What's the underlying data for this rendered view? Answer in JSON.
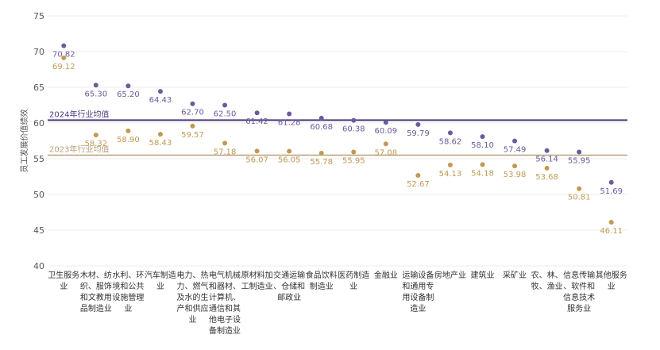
{
  "chart_data": {
    "type": "scatter",
    "title": "",
    "ylabel": "员工发展价值绩效",
    "ylim": [
      40,
      75
    ],
    "yticks": [
      40,
      45,
      50,
      55,
      60,
      65,
      70,
      75
    ],
    "categories": [
      [
        "卫生服务",
        "业"
      ],
      [
        "木材、纺",
        "织、服饰",
        "和文教用",
        "品制造业"
      ],
      [
        "水利、环",
        "境和公共",
        "设施管理",
        "业"
      ],
      [
        "汽车制造",
        "业"
      ],
      [
        "电力、热",
        "力、燃气",
        "及水的生",
        "产和供应",
        "业"
      ],
      [
        "电气机械",
        "和器材、",
        "计算机、",
        "通信和其",
        "他电子设",
        "备制造业"
      ],
      [
        "原材料加",
        "工制造业"
      ],
      [
        "交通运输",
        "、仓储和",
        "邮政业"
      ],
      [
        "食品饮料",
        "制造业"
      ],
      [
        "医药制造",
        "业"
      ],
      [
        "金融业"
      ],
      [
        "运输设备",
        "和通用专",
        "用设备制",
        "造业"
      ],
      [
        "房地产业"
      ],
      [
        "建筑业"
      ],
      [
        "采矿业"
      ],
      [
        "农、林、",
        "牧、渔业"
      ],
      [
        "信息传输",
        "、软件和",
        "信息技术",
        "服务业"
      ],
      [
        "其他服务",
        "业"
      ]
    ],
    "series": [
      {
        "name": "2024",
        "color": "#6e5a9a",
        "values": [
          70.82,
          65.3,
          65.2,
          64.43,
          62.7,
          62.5,
          61.42,
          61.28,
          60.68,
          60.38,
          60.09,
          59.79,
          58.62,
          58.1,
          57.49,
          56.14,
          55.95,
          51.69
        ]
      },
      {
        "name": "2023",
        "color": "#c09a52",
        "values": [
          69.12,
          58.32,
          58.9,
          58.43,
          59.57,
          57.18,
          56.07,
          56.05,
          55.78,
          55.95,
          57.08,
          52.67,
          54.13,
          54.18,
          53.98,
          53.68,
          50.81,
          46.11
        ]
      }
    ],
    "reference_lines": [
      {
        "label": "2024年行业均值",
        "value": 60.4,
        "color": "#4a3a7a"
      },
      {
        "label": "2023年行业均值",
        "value": 55.5,
        "color": "#b8a07a"
      }
    ]
  }
}
